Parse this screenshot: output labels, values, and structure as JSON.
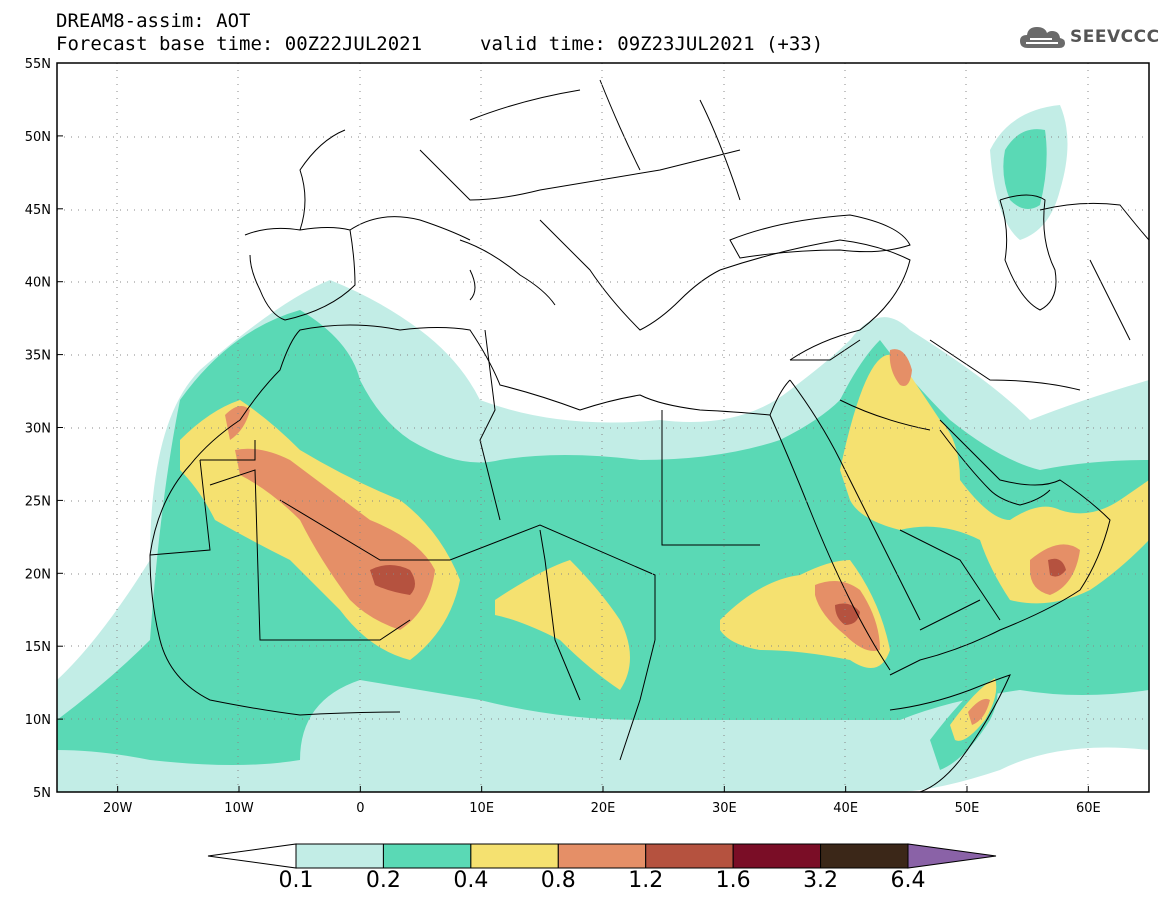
{
  "header": {
    "title": "DREAM8-assim: AOT",
    "base_time": "Forecast base time: 00Z22JUL2021",
    "valid_time": "valid time: 09Z23JUL2021 (+33)"
  },
  "logo": {
    "text": "SEEVCCC",
    "icon": "cloud-icon"
  },
  "map": {
    "lon_range": [
      -25,
      65
    ],
    "lat_range": [
      5,
      55
    ],
    "lat_ticks": [
      "5N",
      "10N",
      "15N",
      "20N",
      "25N",
      "30N",
      "35N",
      "40N",
      "45N",
      "50N",
      "55N"
    ],
    "lon_ticks": [
      "20W",
      "10W",
      "0",
      "10E",
      "20E",
      "30E",
      "40E",
      "50E",
      "60E"
    ],
    "gridlines": "dotted"
  },
  "colorbar": {
    "labels": [
      "0.1",
      "0.2",
      "0.4",
      "0.8",
      "1.2",
      "1.6",
      "3.2",
      "6.4"
    ],
    "colors": [
      "#ffffff",
      "#c2ede6",
      "#5ad9b5",
      "#f5e170",
      "#e58f67",
      "#b5523f",
      "#7a0d26",
      "#3b2718",
      "#8a62a7"
    ]
  }
}
